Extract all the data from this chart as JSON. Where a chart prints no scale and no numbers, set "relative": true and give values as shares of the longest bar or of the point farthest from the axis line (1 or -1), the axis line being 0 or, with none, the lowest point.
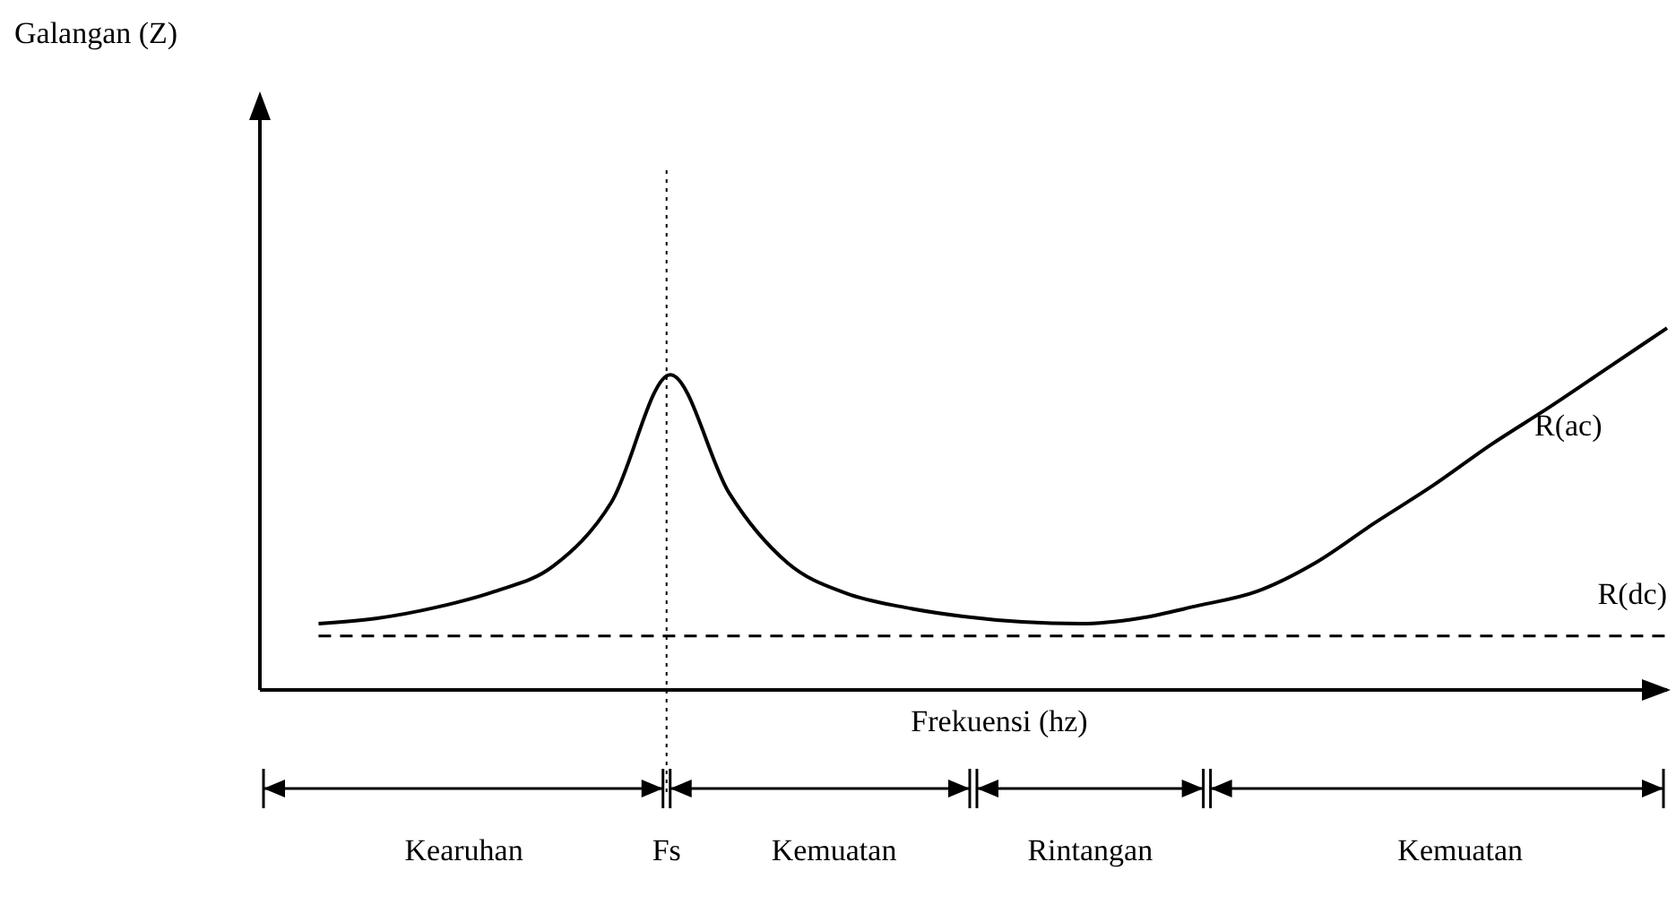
{
  "chart_data": {
    "type": "line",
    "relative": true,
    "xlabel": "Frekuensi (hz)",
    "categories": [
      null,
      null,
      null,
      null,
      null,
      null,
      null,
      null,
      null,
      null,
      null,
      null,
      null,
      null,
      null,
      null,
      null,
      null,
      null,
      null,
      null,
      null,
      null,
      null,
      null
    ],
    "series": [
      {
        "name": "R(ac)",
        "color": "#000000",
        "values": [
          null,
          0.183,
          0.198,
          0.228,
          0.272,
          0.342,
          0.52,
          0.871,
          0.545,
          0.351,
          0.267,
          0.228,
          0.203,
          0.188,
          0.183,
          0.198,
          0.233,
          0.272,
          0.351,
          0.46,
          0.564,
          0.678,
          0.782,
          0.891,
          1.0
        ]
      },
      {
        "name": "R(dc)",
        "color": "#000000",
        "line_style": "dashed",
        "values": [
          null,
          0.149,
          0.149,
          0.149,
          0.149,
          0.149,
          0.149,
          0.149,
          0.149,
          0.149,
          0.149,
          0.149,
          0.149,
          0.149,
          0.149,
          0.149,
          0.149,
          0.149,
          0.149,
          0.149,
          0.149,
          0.149,
          0.149,
          0.149,
          0.149
        ]
      }
    ],
    "annotations": [
      "Fs",
      "Kearuhan",
      "Kemuatan",
      "Rintangan",
      "Kemuatan",
      "Galangan (Z)"
    ]
  }
}
